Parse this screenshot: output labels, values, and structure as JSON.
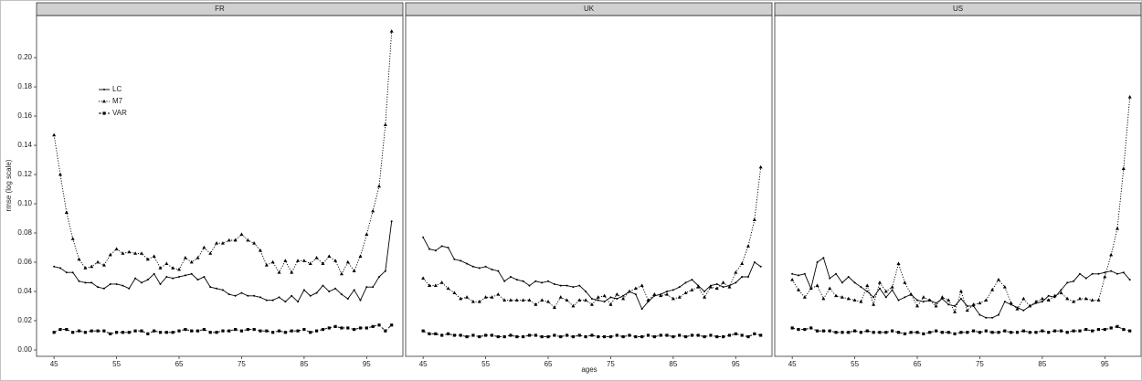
{
  "axes": {
    "x_label": "ages",
    "y_label": "rmse (log scale)"
  },
  "chart_data": [
    {
      "type": "line",
      "title": "FR",
      "legend": "upper left",
      "x": [
        45,
        46,
        47,
        48,
        49,
        50,
        51,
        52,
        53,
        54,
        55,
        56,
        57,
        58,
        59,
        60,
        61,
        62,
        63,
        64,
        65,
        66,
        67,
        68,
        69,
        70,
        71,
        72,
        73,
        74,
        75,
        76,
        77,
        78,
        79,
        80,
        81,
        82,
        83,
        84,
        85,
        86,
        87,
        88,
        89,
        90,
        91,
        92,
        93,
        94,
        95,
        96,
        97,
        98,
        99
      ],
      "xlim": [
        42.2,
        100.8
      ],
      "xticks": [
        45,
        55,
        65,
        75,
        85,
        95
      ],
      "ylim": [
        -0.0044,
        0.2288
      ],
      "yticks": [
        {
          "value": 0,
          "label": "0.00"
        },
        0.02,
        0.04,
        0.06,
        0.08,
        {
          "value": 0.1,
          "label": "0.10"
        },
        0.12,
        0.14,
        0.16,
        0.18,
        {
          "value": 0.2,
          "label": "0.20"
        }
      ],
      "series": [
        {
          "name": "LC",
          "color": "#000000",
          "line_style": "solid",
          "marker": "point",
          "values": [
            0.057,
            0.056,
            0.053,
            0.053,
            0.047,
            0.046,
            0.046,
            0.043,
            0.042,
            0.045,
            0.045,
            0.044,
            0.042,
            0.049,
            0.046,
            0.048,
            0.052,
            0.045,
            0.05,
            0.049,
            0.05,
            0.051,
            0.052,
            0.048,
            0.05,
            0.043,
            0.042,
            0.041,
            0.038,
            0.037,
            0.039,
            0.037,
            0.037,
            0.036,
            0.034,
            0.034,
            0.036,
            0.033,
            0.037,
            0.033,
            0.041,
            0.037,
            0.039,
            0.044,
            0.04,
            0.042,
            0.038,
            0.035,
            0.041,
            0.034,
            0.043,
            0.043,
            0.05,
            0.054,
            0.088
          ]
        },
        {
          "name": "M7",
          "color": "#000000",
          "line_style": "dotted",
          "marker": "triangle",
          "values": [
            0.147,
            0.12,
            0.094,
            0.076,
            0.062,
            0.056,
            0.057,
            0.06,
            0.058,
            0.065,
            0.069,
            0.066,
            0.067,
            0.066,
            0.066,
            0.062,
            0.064,
            0.056,
            0.059,
            0.056,
            0.055,
            0.063,
            0.06,
            0.063,
            0.07,
            0.066,
            0.073,
            0.073,
            0.075,
            0.075,
            0.079,
            0.075,
            0.073,
            0.068,
            0.058,
            0.06,
            0.053,
            0.061,
            0.053,
            0.061,
            0.061,
            0.059,
            0.063,
            0.059,
            0.064,
            0.061,
            0.052,
            0.06,
            0.054,
            0.064,
            0.079,
            0.095,
            0.112,
            0.154,
            0.218
          ]
        },
        {
          "name": "VAR",
          "color": "#000000",
          "line_style": "dashed",
          "marker": "square",
          "values": [
            0.012,
            0.014,
            0.014,
            0.012,
            0.013,
            0.012,
            0.013,
            0.013,
            0.013,
            0.011,
            0.012,
            0.012,
            0.012,
            0.013,
            0.013,
            0.011,
            0.013,
            0.012,
            0.012,
            0.012,
            0.013,
            0.014,
            0.013,
            0.013,
            0.014,
            0.012,
            0.012,
            0.013,
            0.013,
            0.014,
            0.013,
            0.014,
            0.014,
            0.013,
            0.013,
            0.012,
            0.013,
            0.012,
            0.013,
            0.013,
            0.014,
            0.012,
            0.013,
            0.014,
            0.015,
            0.016,
            0.015,
            0.015,
            0.014,
            0.015,
            0.015,
            0.016,
            0.017,
            0.013,
            0.017
          ]
        }
      ]
    },
    {
      "type": "line",
      "title": "UK",
      "x": [
        45,
        46,
        47,
        48,
        49,
        50,
        51,
        52,
        53,
        54,
        55,
        56,
        57,
        58,
        59,
        60,
        61,
        62,
        63,
        64,
        65,
        66,
        67,
        68,
        69,
        70,
        71,
        72,
        73,
        74,
        75,
        76,
        77,
        78,
        79,
        80,
        81,
        82,
        83,
        84,
        85,
        86,
        87,
        88,
        89,
        90,
        91,
        92,
        93,
        94,
        95,
        96,
        97,
        98,
        99
      ],
      "xlim": [
        42.2,
        100.8
      ],
      "xticks": [
        45,
        55,
        65,
        75,
        85,
        95
      ],
      "ylim": [
        -0.0044,
        0.2288
      ],
      "series": [
        {
          "color": "#000000",
          "line_style": "solid",
          "marker": "point",
          "values": [
            0.077,
            0.069,
            0.068,
            0.071,
            0.07,
            0.062,
            0.061,
            0.059,
            0.057,
            0.056,
            0.057,
            0.055,
            0.054,
            0.047,
            0.05,
            0.048,
            0.047,
            0.044,
            0.047,
            0.046,
            0.047,
            0.045,
            0.044,
            0.044,
            0.043,
            0.044,
            0.04,
            0.035,
            0.034,
            0.033,
            0.036,
            0.035,
            0.037,
            0.04,
            0.038,
            0.028,
            0.033,
            0.037,
            0.038,
            0.04,
            0.041,
            0.043,
            0.046,
            0.048,
            0.044,
            0.04,
            0.044,
            0.045,
            0.043,
            0.044,
            0.046,
            0.05,
            0.05,
            0.06,
            0.057
          ]
        },
        {
          "color": "#000000",
          "line_style": "dotted",
          "marker": "triangle",
          "values": [
            0.049,
            0.044,
            0.044,
            0.046,
            0.042,
            0.039,
            0.035,
            0.036,
            0.033,
            0.033,
            0.036,
            0.036,
            0.038,
            0.034,
            0.034,
            0.034,
            0.034,
            0.034,
            0.031,
            0.034,
            0.033,
            0.029,
            0.036,
            0.034,
            0.03,
            0.034,
            0.034,
            0.031,
            0.036,
            0.037,
            0.031,
            0.038,
            0.035,
            0.04,
            0.042,
            0.044,
            0.034,
            0.038,
            0.037,
            0.038,
            0.035,
            0.036,
            0.039,
            0.041,
            0.043,
            0.036,
            0.043,
            0.042,
            0.046,
            0.043,
            0.053,
            0.059,
            0.071,
            0.089,
            0.125
          ]
        },
        {
          "color": "#000000",
          "line_style": "dashed",
          "marker": "square",
          "values": [
            0.013,
            0.011,
            0.011,
            0.01,
            0.011,
            0.01,
            0.01,
            0.009,
            0.01,
            0.009,
            0.01,
            0.01,
            0.009,
            0.009,
            0.01,
            0.009,
            0.009,
            0.01,
            0.01,
            0.009,
            0.009,
            0.01,
            0.009,
            0.01,
            0.009,
            0.01,
            0.009,
            0.01,
            0.009,
            0.009,
            0.009,
            0.01,
            0.009,
            0.01,
            0.009,
            0.009,
            0.01,
            0.009,
            0.01,
            0.01,
            0.009,
            0.01,
            0.009,
            0.01,
            0.01,
            0.009,
            0.01,
            0.009,
            0.009,
            0.01,
            0.011,
            0.01,
            0.009,
            0.011,
            0.01
          ]
        }
      ]
    },
    {
      "type": "line",
      "title": "US",
      "x": [
        45,
        46,
        47,
        48,
        49,
        50,
        51,
        52,
        53,
        54,
        55,
        56,
        57,
        58,
        59,
        60,
        61,
        62,
        63,
        64,
        65,
        66,
        67,
        68,
        69,
        70,
        71,
        72,
        73,
        74,
        75,
        76,
        77,
        78,
        79,
        80,
        81,
        82,
        83,
        84,
        85,
        86,
        87,
        88,
        89,
        90,
        91,
        92,
        93,
        94,
        95,
        96,
        97,
        98,
        99
      ],
      "xlim": [
        42.2,
        100.8
      ],
      "xticks": [
        45,
        55,
        65,
        75,
        85,
        95
      ],
      "ylim": [
        -0.0044,
        0.2288
      ],
      "series": [
        {
          "color": "#000000",
          "line_style": "solid",
          "marker": "point",
          "values": [
            0.052,
            0.051,
            0.052,
            0.042,
            0.06,
            0.063,
            0.049,
            0.052,
            0.046,
            0.05,
            0.046,
            0.043,
            0.04,
            0.036,
            0.042,
            0.036,
            0.041,
            0.034,
            0.036,
            0.038,
            0.034,
            0.033,
            0.034,
            0.032,
            0.035,
            0.031,
            0.03,
            0.035,
            0.03,
            0.03,
            0.024,
            0.022,
            0.022,
            0.024,
            0.033,
            0.031,
            0.029,
            0.027,
            0.03,
            0.032,
            0.033,
            0.037,
            0.036,
            0.041,
            0.046,
            0.047,
            0.052,
            0.049,
            0.052,
            0.052,
            0.053,
            0.054,
            0.052,
            0.053,
            0.048
          ]
        },
        {
          "color": "#000000",
          "line_style": "dotted",
          "marker": "triangle",
          "values": [
            0.048,
            0.041,
            0.036,
            0.042,
            0.044,
            0.035,
            0.042,
            0.037,
            0.036,
            0.035,
            0.034,
            0.033,
            0.044,
            0.031,
            0.046,
            0.04,
            0.043,
            0.059,
            0.046,
            0.038,
            0.03,
            0.036,
            0.034,
            0.03,
            0.036,
            0.034,
            0.026,
            0.04,
            0.027,
            0.031,
            0.032,
            0.034,
            0.041,
            0.048,
            0.043,
            0.032,
            0.028,
            0.035,
            0.03,
            0.033,
            0.035,
            0.034,
            0.037,
            0.039,
            0.035,
            0.033,
            0.035,
            0.035,
            0.034,
            0.034,
            0.05,
            0.065,
            0.083,
            0.124,
            0.173
          ]
        },
        {
          "color": "#000000",
          "line_style": "dashed",
          "marker": "square",
          "values": [
            0.015,
            0.014,
            0.014,
            0.015,
            0.013,
            0.013,
            0.013,
            0.012,
            0.012,
            0.012,
            0.013,
            0.012,
            0.013,
            0.012,
            0.012,
            0.012,
            0.013,
            0.012,
            0.011,
            0.012,
            0.012,
            0.011,
            0.012,
            0.013,
            0.012,
            0.012,
            0.011,
            0.012,
            0.012,
            0.013,
            0.012,
            0.013,
            0.012,
            0.012,
            0.013,
            0.012,
            0.012,
            0.013,
            0.012,
            0.012,
            0.013,
            0.012,
            0.013,
            0.013,
            0.012,
            0.013,
            0.013,
            0.014,
            0.013,
            0.014,
            0.014,
            0.015,
            0.016,
            0.014,
            0.013
          ]
        }
      ]
    }
  ]
}
